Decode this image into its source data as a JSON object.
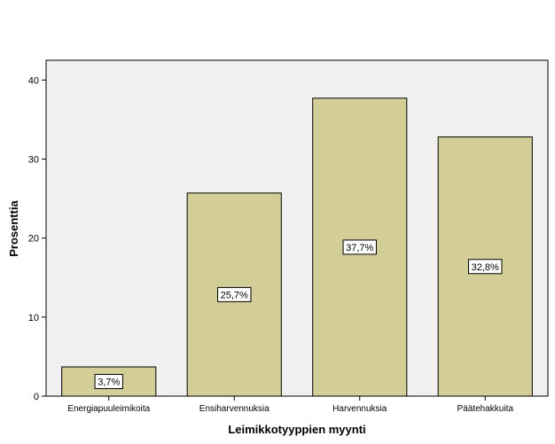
{
  "chart_data": {
    "type": "bar",
    "categories": [
      "Energiapuuleimikoita",
      "Ensiharvennuksia",
      "Harvennuksia",
      "Päätehakkuita"
    ],
    "values": [
      3.7,
      25.7,
      37.7,
      32.8
    ],
    "data_labels": [
      "3,7%",
      "25,7%",
      "37,7%",
      "32,8%"
    ],
    "xlabel": "Leimikkotyyppien myynti",
    "ylabel": "Prosenttia",
    "ylim": [
      0,
      42.5
    ],
    "yticks": [
      0,
      10,
      20,
      30,
      40
    ],
    "ytick_labels": [
      "0",
      "10",
      "20",
      "30",
      "40"
    ],
    "grid": false,
    "colors": {
      "bar_fill": "#d3cd97",
      "bar_stroke": "#000000",
      "plot_background": "#f0f0f0",
      "label_background": "#ffffff"
    }
  }
}
